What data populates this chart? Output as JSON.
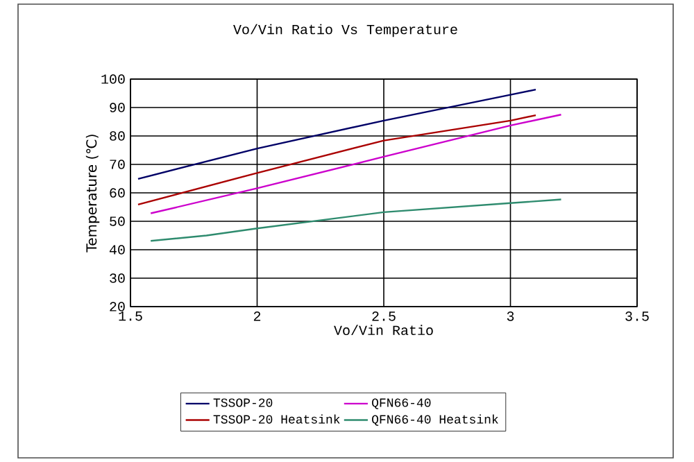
{
  "chart_data": {
    "type": "line",
    "title": "Vo/Vin Ratio Vs Temperature",
    "xlabel": "Vo/Vin Ratio",
    "ylabel": "Temperature (℃)",
    "xlim": [
      1.5,
      3.5
    ],
    "xticks": [
      1.5,
      2,
      2.5,
      3,
      3.5
    ],
    "ylim": [
      20,
      100
    ],
    "yticks": [
      20,
      30,
      40,
      50,
      60,
      70,
      80,
      90,
      100
    ],
    "grid": true,
    "legend": "bottom",
    "marker": "none",
    "line_style": "solid",
    "series": [
      {
        "name": "TSSOP-20",
        "color": "#000066",
        "x": [
          1.53,
          2,
          2.5,
          3,
          3.1
        ],
        "values": [
          64.9,
          75.6,
          85.4,
          94.5,
          96.3
        ]
      },
      {
        "name": "QFN66-40",
        "color": "#cc00cc",
        "x": [
          1.58,
          2,
          2.5,
          3,
          3.2
        ],
        "values": [
          52.8,
          61.6,
          72.7,
          83.7,
          87.5
        ]
      },
      {
        "name": "TSSOP-20 Heatsink",
        "color": "#aa0000",
        "x": [
          1.53,
          2,
          2.5,
          3,
          3.1
        ],
        "values": [
          55.9,
          67,
          78.4,
          85.4,
          87.3
        ]
      },
      {
        "name": "QFN66-40 Heatsink",
        "color": "#2e8b6e",
        "x": [
          1.58,
          1.8,
          2,
          2.5,
          3,
          3.2
        ],
        "values": [
          43.1,
          45,
          47.5,
          53.2,
          56.4,
          57.7
        ]
      }
    ]
  }
}
